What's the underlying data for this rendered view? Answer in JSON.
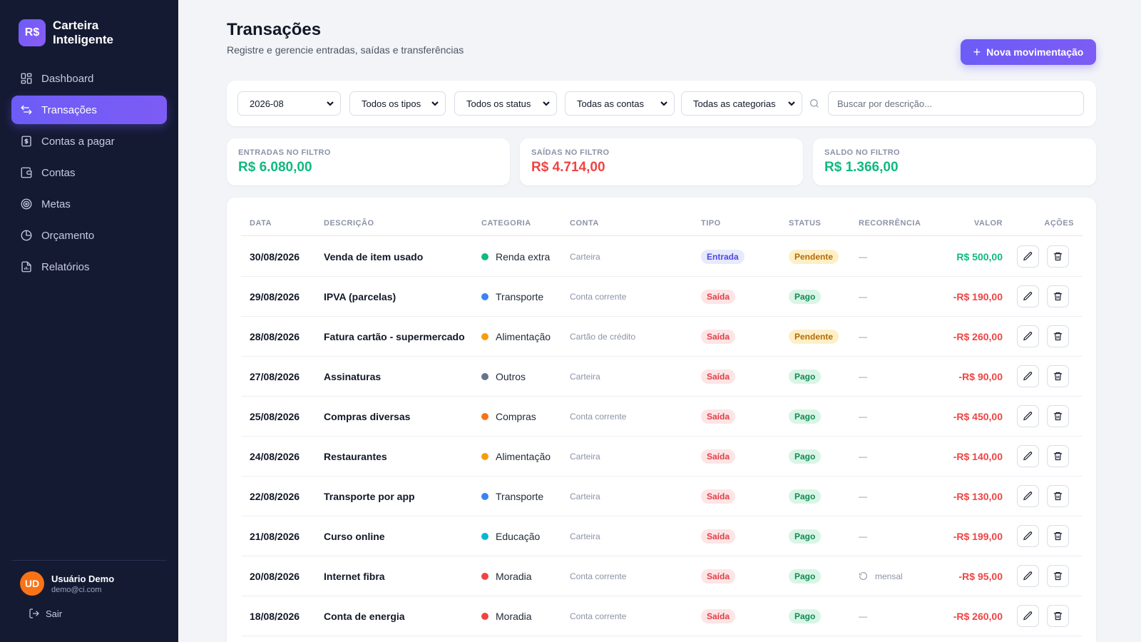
{
  "brand": {
    "logo": "R$",
    "name": "Carteira Inteligente"
  },
  "nav": [
    {
      "label": "Dashboard",
      "icon": "grid-icon",
      "active": false
    },
    {
      "label": "Transações",
      "icon": "arrows-swap-icon",
      "active": true
    },
    {
      "label": "Contas a pagar",
      "icon": "bill-icon",
      "active": false
    },
    {
      "label": "Contas",
      "icon": "wallet-icon",
      "active": false
    },
    {
      "label": "Metas",
      "icon": "target-icon",
      "active": false
    },
    {
      "label": "Orçamento",
      "icon": "pie-icon",
      "active": false
    },
    {
      "label": "Relatórios",
      "icon": "report-icon",
      "active": false
    }
  ],
  "user": {
    "initials": "UD",
    "name": "Usuário Demo",
    "email": "demo@ci.com",
    "logout_label": "Sair"
  },
  "header": {
    "title": "Transações",
    "subtitle": "Registre e gerencie entradas, saídas e transferências",
    "new_button": "Nova movimentação"
  },
  "filters": {
    "month": "2026-08",
    "type": "Todos os tipos",
    "status": "Todos os status",
    "account": "Todas as contas",
    "category": "Todas as categorias",
    "search_placeholder": "Buscar por descrição..."
  },
  "summary": {
    "income": {
      "label": "ENTRADAS NO FILTRO",
      "value": "R$ 6.080,00",
      "color": "#10b981"
    },
    "expense": {
      "label": "SAÍDAS NO FILTRO",
      "value": "R$ 4.714,00",
      "color": "#ef4444"
    },
    "balance": {
      "label": "SALDO NO FILTRO",
      "value": "R$ 1.366,00",
      "color": "#10b981"
    }
  },
  "table": {
    "headers": {
      "date": "DATA",
      "desc": "DESCRIÇÃO",
      "category": "CATEGORIA",
      "account": "CONTA",
      "type": "TIPO",
      "status": "STATUS",
      "recurrence": "RECORRÊNCIA",
      "value": "VALOR",
      "actions": "AÇÕES"
    },
    "rows": [
      {
        "date": "30/08/2026",
        "desc": "Venda de item usado",
        "category": "Renda extra",
        "cat_color": "#10b981",
        "account": "Carteira",
        "type": "Entrada",
        "status": "Pendente",
        "recurrence": "—",
        "recurring": false,
        "value": "R$ 500,00",
        "positive": true
      },
      {
        "date": "29/08/2026",
        "desc": "IPVA (parcelas)",
        "category": "Transporte",
        "cat_color": "#3b82f6",
        "account": "Conta corrente",
        "type": "Saída",
        "status": "Pago",
        "recurrence": "—",
        "recurring": false,
        "value": "-R$ 190,00",
        "positive": false
      },
      {
        "date": "28/08/2026",
        "desc": "Fatura cartão - supermercado",
        "category": "Alimentação",
        "cat_color": "#f59e0b",
        "account": "Cartão de crédito",
        "type": "Saída",
        "status": "Pendente",
        "recurrence": "—",
        "recurring": false,
        "value": "-R$ 260,00",
        "positive": false
      },
      {
        "date": "27/08/2026",
        "desc": "Assinaturas",
        "category": "Outros",
        "cat_color": "#64748b",
        "account": "Carteira",
        "type": "Saída",
        "status": "Pago",
        "recurrence": "—",
        "recurring": false,
        "value": "-R$ 90,00",
        "positive": false
      },
      {
        "date": "25/08/2026",
        "desc": "Compras diversas",
        "category": "Compras",
        "cat_color": "#f97316",
        "account": "Conta corrente",
        "type": "Saída",
        "status": "Pago",
        "recurrence": "—",
        "recurring": false,
        "value": "-R$ 450,00",
        "positive": false
      },
      {
        "date": "24/08/2026",
        "desc": "Restaurantes",
        "category": "Alimentação",
        "cat_color": "#f59e0b",
        "account": "Carteira",
        "type": "Saída",
        "status": "Pago",
        "recurrence": "—",
        "recurring": false,
        "value": "-R$ 140,00",
        "positive": false
      },
      {
        "date": "22/08/2026",
        "desc": "Transporte por app",
        "category": "Transporte",
        "cat_color": "#3b82f6",
        "account": "Carteira",
        "type": "Saída",
        "status": "Pago",
        "recurrence": "—",
        "recurring": false,
        "value": "-R$ 130,00",
        "positive": false
      },
      {
        "date": "21/08/2026",
        "desc": "Curso online",
        "category": "Educação",
        "cat_color": "#06b6d4",
        "account": "Carteira",
        "type": "Saída",
        "status": "Pago",
        "recurrence": "—",
        "recurring": false,
        "value": "-R$ 199,00",
        "positive": false
      },
      {
        "date": "20/08/2026",
        "desc": "Internet fibra",
        "category": "Moradia",
        "cat_color": "#ef4444",
        "account": "Conta corrente",
        "type": "Saída",
        "status": "Pago",
        "recurrence": "mensal",
        "recurring": true,
        "value": "-R$ 95,00",
        "positive": false
      },
      {
        "date": "18/08/2026",
        "desc": "Conta de energia",
        "category": "Moradia",
        "cat_color": "#ef4444",
        "account": "Conta corrente",
        "type": "Saída",
        "status": "Pago",
        "recurrence": "—",
        "recurring": false,
        "value": "-R$ 260,00",
        "positive": false
      }
    ]
  },
  "colors": {
    "accent": "#6d5cf6",
    "income": "#10b981",
    "expense": "#ef4444",
    "sidebar": "#151a33"
  }
}
